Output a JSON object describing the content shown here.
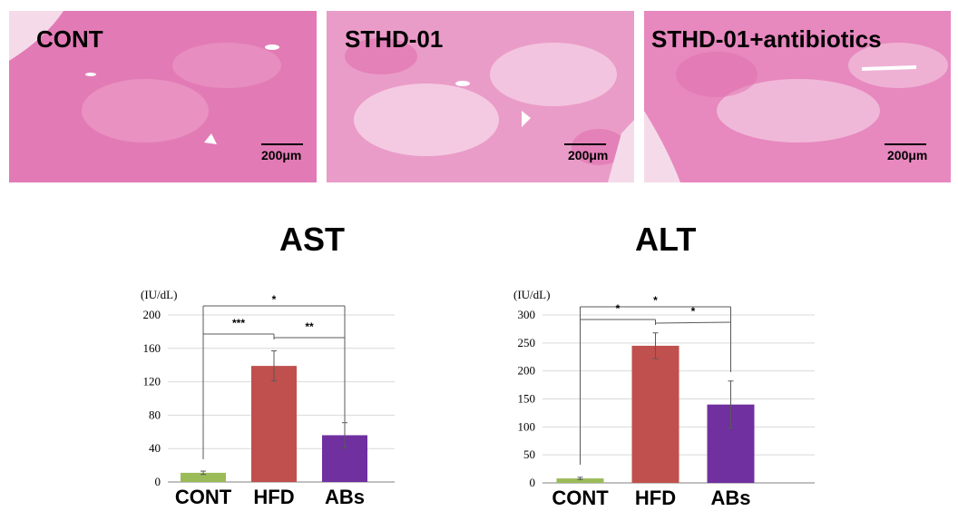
{
  "panels": [
    {
      "label": "CONT",
      "scale": "200μm"
    },
    {
      "label": "STHD-01",
      "scale": "200μm"
    },
    {
      "label": "STHD-01+antibiotics",
      "scale": "200μm"
    }
  ],
  "colors": {
    "tissue": "#e07ab3",
    "cont": "#9bbb59",
    "hfd": "#c0504d",
    "abs": "#7030a0"
  },
  "chart_data": [
    {
      "type": "bar",
      "title": "AST",
      "ylabel": "(IU/dL)",
      "categories": [
        "CONT",
        "HFD",
        "ABs"
      ],
      "values": [
        11,
        139,
        56
      ],
      "errors": [
        2,
        18,
        15
      ],
      "ylim": [
        0,
        200
      ],
      "yticks": [
        "0",
        "40",
        "80",
        "120",
        "160",
        "200"
      ],
      "significance": [
        "*",
        "***",
        "**"
      ]
    },
    {
      "type": "bar",
      "title": "ALT",
      "ylabel": "(IU/dL)",
      "categories": [
        "CONT",
        "HFD",
        "ABs"
      ],
      "values": [
        8,
        245,
        140
      ],
      "errors": [
        2,
        23,
        42
      ],
      "ylim": [
        0,
        300
      ],
      "yticks": [
        "0",
        "50",
        "100",
        "150",
        "200",
        "250",
        "300"
      ],
      "significance": [
        "*",
        "*",
        "*"
      ]
    }
  ]
}
